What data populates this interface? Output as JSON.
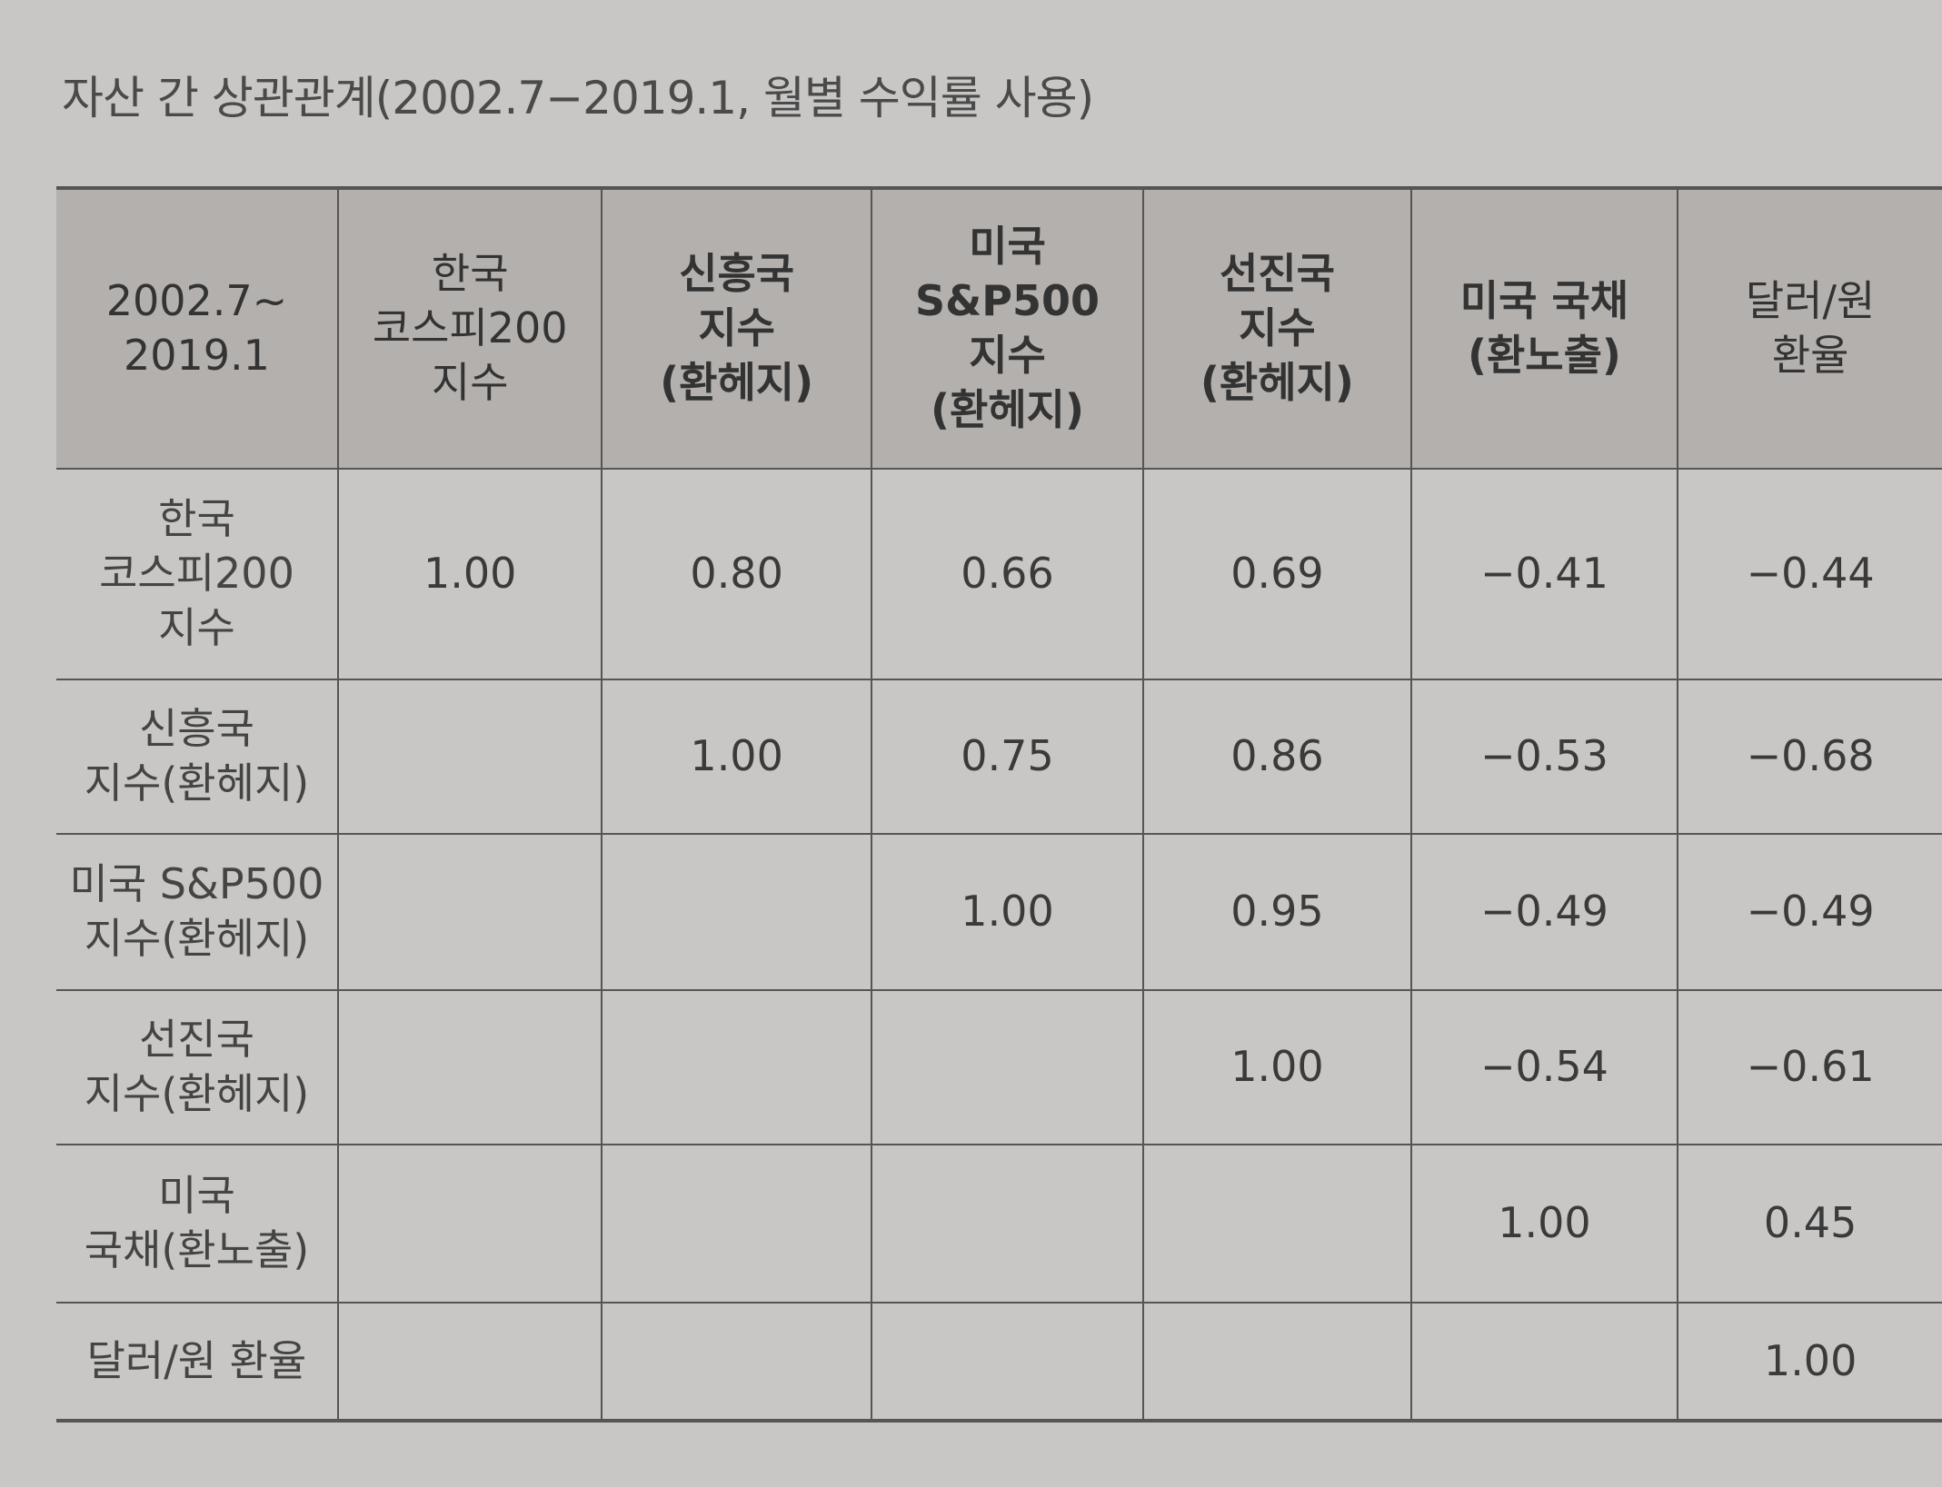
{
  "title": "자산 간 상관관계(2002.7−2019.1, 월별 수익률 사용)",
  "table": {
    "header": {
      "corner": "2002.7~\n2019.1",
      "columns": [
        "한국\n코스피200\n지수",
        "신흥국\n지수\n(환헤지)",
        "미국\nS&P500\n지수\n(환헤지)",
        "선진국\n지수\n(환헤지)",
        "미국 국채\n(환노출)",
        "달러/원\n환율"
      ]
    },
    "rows": [
      {
        "label": "한국\n코스피200\n지수",
        "values": [
          "1.00",
          "0.80",
          "0.66",
          "0.69",
          "−0.41",
          "−0.44"
        ]
      },
      {
        "label": "신흥국\n지수(환헤지)",
        "values": [
          null,
          "1.00",
          "0.75",
          "0.86",
          "−0.53",
          "−0.68"
        ]
      },
      {
        "label": "미국 S&P500\n지수(환헤지)",
        "values": [
          null,
          null,
          "1.00",
          "0.95",
          "−0.49",
          "−0.49"
        ]
      },
      {
        "label": "선진국\n지수(환헤지)",
        "values": [
          null,
          null,
          null,
          "1.00",
          "−0.54",
          "−0.61"
        ]
      },
      {
        "label": "미국\n국채(환노출)",
        "values": [
          null,
          null,
          null,
          null,
          "1.00",
          "0.45"
        ]
      },
      {
        "label": "달러/원 환율",
        "values": [
          null,
          null,
          null,
          null,
          null,
          "1.00"
        ]
      }
    ]
  }
}
